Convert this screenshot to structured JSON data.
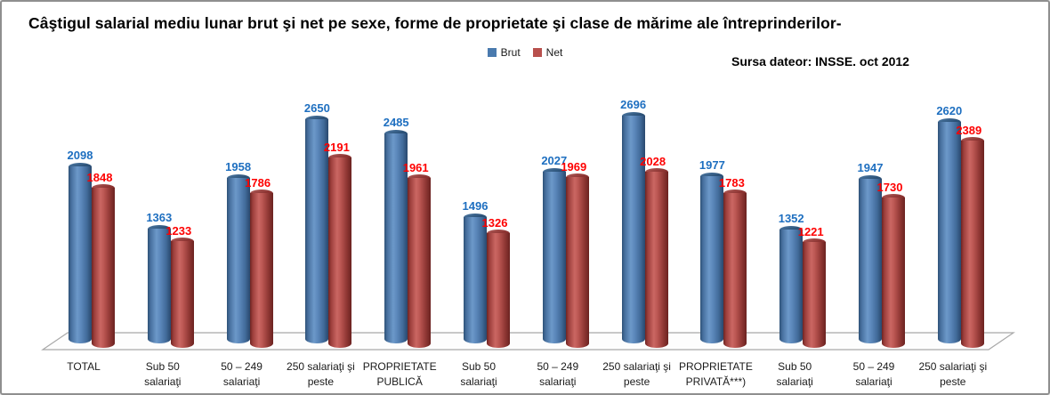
{
  "title": "Câştigul salarial mediu lunar brut şi net pe sexe, forme de proprietate şi clase de mărime ale întreprinderilor-",
  "source_note": "Sursa dateor: INSSE. oct 2012",
  "legend": {
    "items": [
      {
        "label": "Brut",
        "color": "#4a7aae"
      },
      {
        "label": "Net",
        "color": "#b8504d"
      }
    ]
  },
  "chart_data": {
    "type": "bar",
    "style": "3d-cylinder",
    "title": "Câştigul salarial mediu lunar brut şi net pe sexe, forme de proprietate şi clase de mărime ale întreprinderilor-",
    "categories": [
      "TOTAL",
      "Sub 50\nsalariaţi",
      "50 – 249\nsalariaţi",
      "250 salariaţi şi\npeste",
      "PROPRIETATE\nPUBLICĂ",
      "Sub 50\nsalariaţi",
      "50 – 249\nsalariaţi",
      "250 salariaţi şi\npeste",
      "PROPRIETATE\nPRIVATĂ***)",
      "Sub 50\nsalariaţi",
      "50 – 249\nsalariaţi",
      "250 salariaţi şi\npeste"
    ],
    "series": [
      {
        "name": "Brut",
        "color": "#4a7aae",
        "values": [
          2098,
          1363,
          1958,
          2650,
          2485,
          1496,
          2027,
          2696,
          1977,
          1352,
          1947,
          2620
        ]
      },
      {
        "name": "Net",
        "color": "#b8504d",
        "values": [
          1848,
          1233,
          1786,
          2191,
          1961,
          1326,
          1969,
          2028,
          1783,
          1221,
          1730,
          2389
        ]
      }
    ],
    "value_labels": true,
    "label_colors": {
      "Brut": "#1e6fc0",
      "Net": "#fe0000"
    },
    "xlabel": "",
    "ylabel": "",
    "ylim": [
      0,
      2800
    ],
    "grid": false,
    "legend_position": "top-center"
  }
}
